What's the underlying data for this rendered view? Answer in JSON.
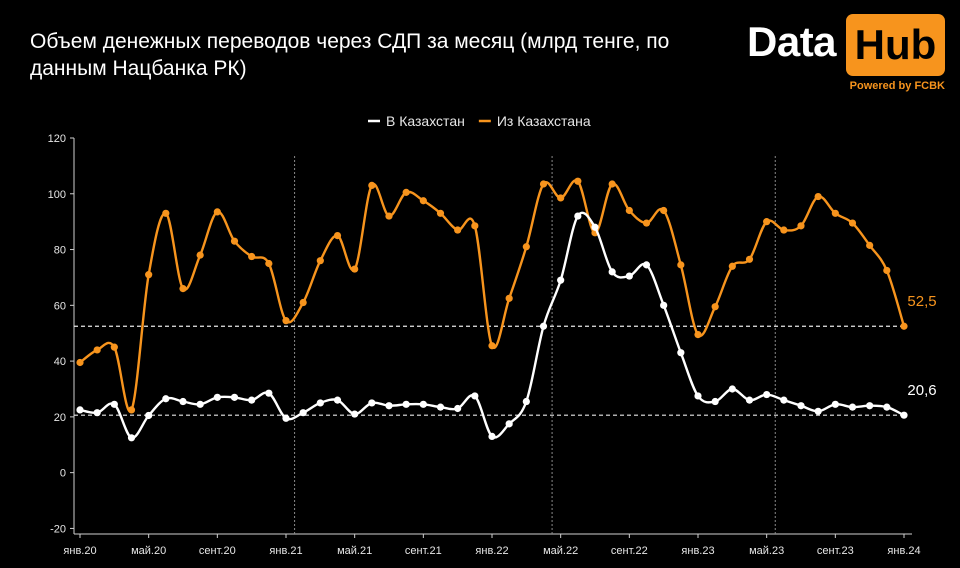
{
  "title": "Объем денежных переводов через СДП за месяц (млрд тенге, по данным Нацбанка РК)",
  "logo": {
    "data_text": "Data",
    "hub_text": "Hub",
    "powered_text": "Powered by FCBK"
  },
  "colors": {
    "background": "#000000",
    "series_in": "#ffffff",
    "series_out": "#f7941d",
    "accent": "#f7941d"
  },
  "chart_data": {
    "type": "line",
    "x_labels": [
      "янв.20",
      "май.20",
      "сент.20",
      "янв.21",
      "май.21",
      "сент.21",
      "янв.22",
      "май.22",
      "сент.22",
      "янв.23",
      "май.23",
      "сент.23",
      "янв.24"
    ],
    "x_label_indices": [
      0,
      4,
      8,
      12,
      16,
      20,
      24,
      28,
      32,
      36,
      40,
      44,
      48
    ],
    "y_ticks": [
      -20,
      0,
      20,
      40,
      60,
      80,
      100,
      120
    ],
    "ylim": [
      -22,
      120
    ],
    "vertical_dividers_after_index": [
      12.5,
      27.5,
      40.5
    ],
    "reference_lines": [
      {
        "series": "Из Казахстана",
        "value": 52.5,
        "label": "52,5"
      },
      {
        "series": "В Казахстан",
        "value": 20.6,
        "label": "20,6"
      }
    ],
    "series": [
      {
        "name": "В Казахстан",
        "color": "#ffffff",
        "values": [
          22.5,
          21.5,
          24.5,
          12.5,
          20.5,
          26.5,
          25.5,
          24.5,
          27,
          27,
          26,
          28.5,
          19.5,
          21.5,
          25,
          26,
          21,
          25,
          24,
          24.5,
          24.5,
          23.5,
          23,
          27.5,
          13,
          17.5,
          25.5,
          52.5,
          69,
          92,
          88,
          72,
          70.5,
          74.5,
          60,
          43,
          27.5,
          25.5,
          30,
          26,
          28,
          26,
          24,
          22,
          24.5,
          23.5,
          24,
          23.5,
          20.6
        ]
      },
      {
        "name": "Из Казахстана",
        "color": "#f7941d",
        "values": [
          39.5,
          44,
          45,
          22.5,
          71,
          93,
          66,
          78,
          93.5,
          83,
          77.5,
          75,
          54.5,
          61,
          76,
          85,
          73,
          103,
          92,
          100.5,
          97.5,
          93,
          87,
          88.5,
          45.5,
          62.5,
          81,
          103.5,
          98.5,
          104.5,
          86,
          103.5,
          94,
          89.5,
          94,
          74.5,
          49.5,
          59.5,
          74,
          76.5,
          90,
          87,
          88.5,
          99,
          93,
          89.5,
          81.5,
          72.5,
          52.5
        ]
      }
    ]
  }
}
